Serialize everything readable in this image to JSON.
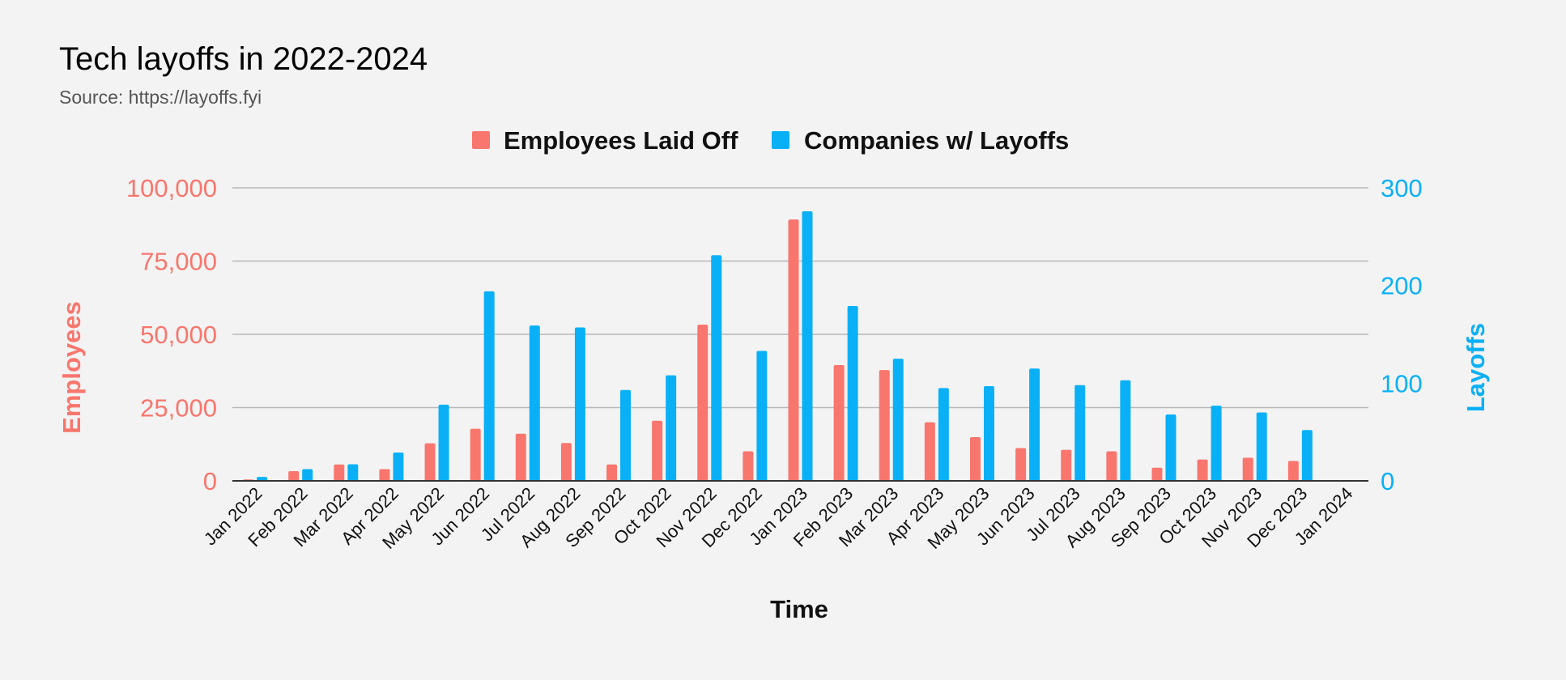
{
  "chart_data": {
    "type": "bar",
    "title": "Tech layoffs in 2022-2024",
    "subtitle": "Source: https://layoffs.fyi",
    "xlabel": "Time",
    "ylabel_left": "Employees",
    "ylabel_right": "Layoffs",
    "ylim_left": [
      0,
      100000
    ],
    "ylim_right": [
      0,
      300
    ],
    "yticks_left": [
      "0",
      "25,000",
      "50,000",
      "75,000",
      "100,000"
    ],
    "yticks_right": [
      "0",
      "100",
      "200",
      "300"
    ],
    "grid": true,
    "legend_position": "top-center",
    "categories": [
      "Jan 2022",
      "Feb 2022",
      "Mar 2022",
      "Apr 2022",
      "May 2022",
      "Jun 2022",
      "Jul 2022",
      "Aug 2022",
      "Sep 2022",
      "Oct 2022",
      "Nov 2022",
      "Dec 2022",
      "Jan 2023",
      "Feb 2023",
      "Mar 2023",
      "Apr 2023",
      "May 2023",
      "Jun 2023",
      "Jul 2023",
      "Aug 2023",
      "Sep 2023",
      "Oct 2023",
      "Nov 2023",
      "Dec 2023",
      "Jan 2024"
    ],
    "series": [
      {
        "name": "Employees Laid Off",
        "axis": "left",
        "color": "#f8766d",
        "values": [
          500,
          3300,
          5600,
          4000,
          12800,
          17800,
          16100,
          12900,
          5600,
          20500,
          53300,
          10100,
          89200,
          39500,
          37800,
          20000,
          14900,
          11200,
          10600,
          10100,
          4500,
          7300,
          7900,
          6800,
          0
        ]
      },
      {
        "name": "Companies w/ Layoffs",
        "axis": "right",
        "color": "#0ab0f6",
        "values": [
          4,
          12,
          17,
          29,
          78,
          194,
          159,
          157,
          93,
          108,
          231,
          133,
          276,
          179,
          125,
          95,
          97,
          115,
          98,
          103,
          68,
          77,
          70,
          52,
          0
        ]
      }
    ]
  }
}
